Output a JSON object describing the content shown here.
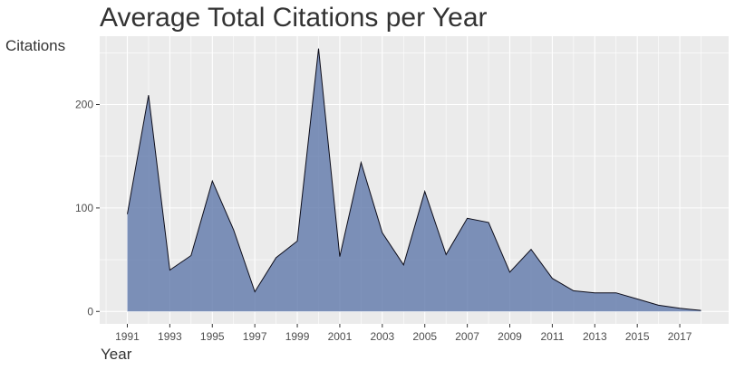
{
  "chart_data": {
    "type": "area",
    "title": "Average Total Citations per Year",
    "xlabel": "Year",
    "ylabel": "Citations",
    "x": [
      1991,
      1992,
      1993,
      1994,
      1995,
      1996,
      1997,
      1998,
      1999,
      2000,
      2001,
      2002,
      2003,
      2004,
      2005,
      2006,
      2007,
      2008,
      2009,
      2010,
      2011,
      2012,
      2013,
      2014,
      2015,
      2016,
      2017,
      2018
    ],
    "series": [
      {
        "values": [
          94,
          209,
          40,
          54,
          126,
          79,
          19,
          52,
          68,
          254,
          53,
          144,
          76,
          45,
          116,
          55,
          90,
          86,
          38,
          60,
          32,
          20,
          18,
          18,
          12,
          6,
          3,
          1
        ]
      }
    ],
    "xticks": [
      "1991",
      "1993",
      "1995",
      "1997",
      "1999",
      "2001",
      "2003",
      "2005",
      "2007",
      "2009",
      "2011",
      "2013",
      "2015",
      "2017"
    ],
    "yticks": [
      "0",
      "100",
      "200"
    ],
    "ylim": [
      -12,
      266
    ],
    "xlim": [
      1989.7,
      2019.3
    ],
    "grid": true,
    "fill_color": "#5b75a8",
    "line_color": "#0d0d1a",
    "panel_color": "#ebebeb"
  }
}
